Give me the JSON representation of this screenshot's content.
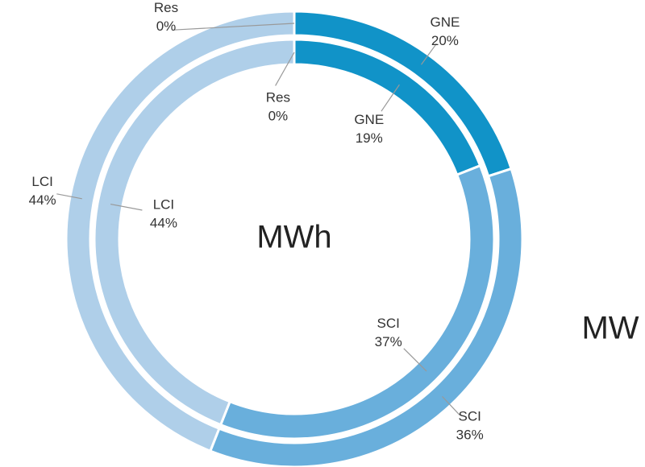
{
  "chart_data": {
    "type": "donut",
    "categories": [
      "GNE",
      "SCI",
      "LCI",
      "Res"
    ],
    "colors": [
      "#1193c8",
      "#69afdc",
      "#afcfe9",
      "#afcfe9"
    ],
    "series": [
      {
        "name": "MW",
        "values": [
          20,
          36,
          44,
          0
        ],
        "value_labels": [
          "20%",
          "36%",
          "44%",
          "0%"
        ]
      },
      {
        "name": "MWh",
        "values": [
          19,
          37,
          44,
          0
        ],
        "value_labels": [
          "19%",
          "37%",
          "44%",
          "0%"
        ]
      }
    ]
  }
}
